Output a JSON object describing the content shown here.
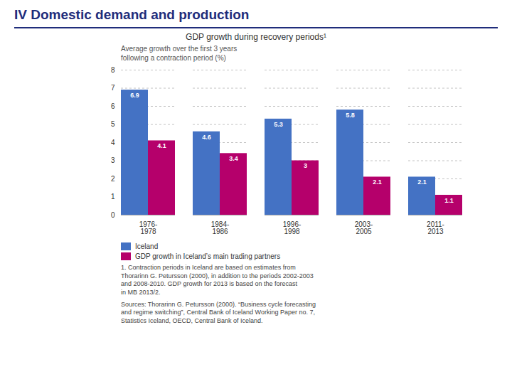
{
  "chart_data": {
    "type": "bar",
    "header": "IV Domestic demand and production",
    "title": "GDP growth during recovery periods¹",
    "subtitle": "Average growth over the first 3 years\nfollowing a contraction period (%)",
    "categories": [
      "1976-\n1978",
      "1984-\n1986",
      "1996-\n1998",
      "2003-\n2005",
      "2011-\n2013"
    ],
    "series": [
      {
        "name": "Iceland",
        "color": "#4472C4",
        "values": [
          6.9,
          4.6,
          5.3,
          5.8,
          2.1
        ]
      },
      {
        "name": "GDP growth in Iceland’s main trading partners",
        "color": "#B5006B",
        "values": [
          4.1,
          3.4,
          3.0,
          2.1,
          1.1
        ]
      }
    ],
    "ylim": [
      0,
      8
    ],
    "yticks": [
      0,
      1,
      2,
      3,
      4,
      5,
      6,
      7,
      8
    ],
    "grid": true,
    "legend": "bottom",
    "data_labels": true,
    "footnotes": [
      "1.  Contraction periods in Iceland are based on estimates from\n    Thorarinn G. Petursson (2000), in addition to the periods 2002-2003\n    and 2008-2010. GDP growth for 2013 is based on the forecast\n    in MB 2013/2.",
      "Sources: Thorarinn G. Petursson (2000). “Business cycle forecasting\nand regime switching”, Central Bank of Iceland Working Paper no. 7,\nStatistics Iceland, OECD, Central Bank of Iceland."
    ]
  }
}
